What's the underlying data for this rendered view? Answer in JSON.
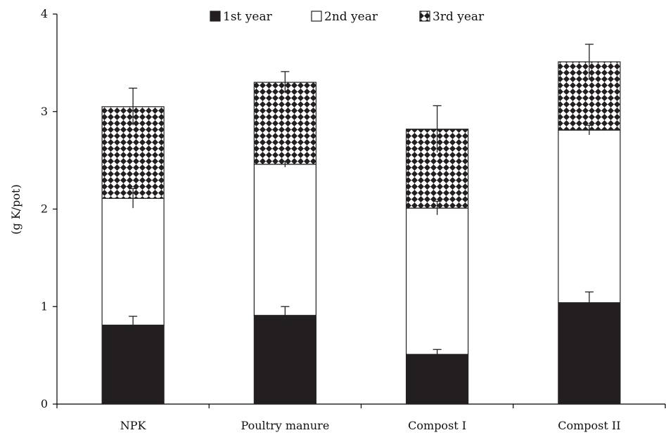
{
  "chart_data": {
    "type": "bar",
    "stacked": true,
    "title": "",
    "xlabel": "",
    "ylabel": "(g K/pot)",
    "ylim": [
      0,
      4
    ],
    "yticks": [
      0,
      1,
      2,
      3,
      4
    ],
    "grid": false,
    "legend_position": "top-center",
    "categories": [
      "NPK",
      "Poultry manure",
      "Compost I",
      "Compost II"
    ],
    "series": [
      {
        "name": "1st year",
        "values": [
          0.81,
          0.91,
          0.51,
          1.04
        ],
        "errors": [
          0.09,
          0.09,
          0.05,
          0.11
        ],
        "fill": "solid",
        "color": "#231f20"
      },
      {
        "name": "2nd year",
        "values": [
          1.3,
          1.55,
          1.5,
          1.77
        ],
        "errors": [
          0.1,
          0.03,
          0.07,
          0.05
        ],
        "fill": "none",
        "color": "#ffffff"
      },
      {
        "name": "3rd year",
        "values": [
          0.94,
          0.84,
          0.81,
          0.7
        ],
        "errors": [
          0.19,
          0.11,
          0.24,
          0.18
        ],
        "fill": "checker",
        "color": "#231f20"
      }
    ]
  }
}
